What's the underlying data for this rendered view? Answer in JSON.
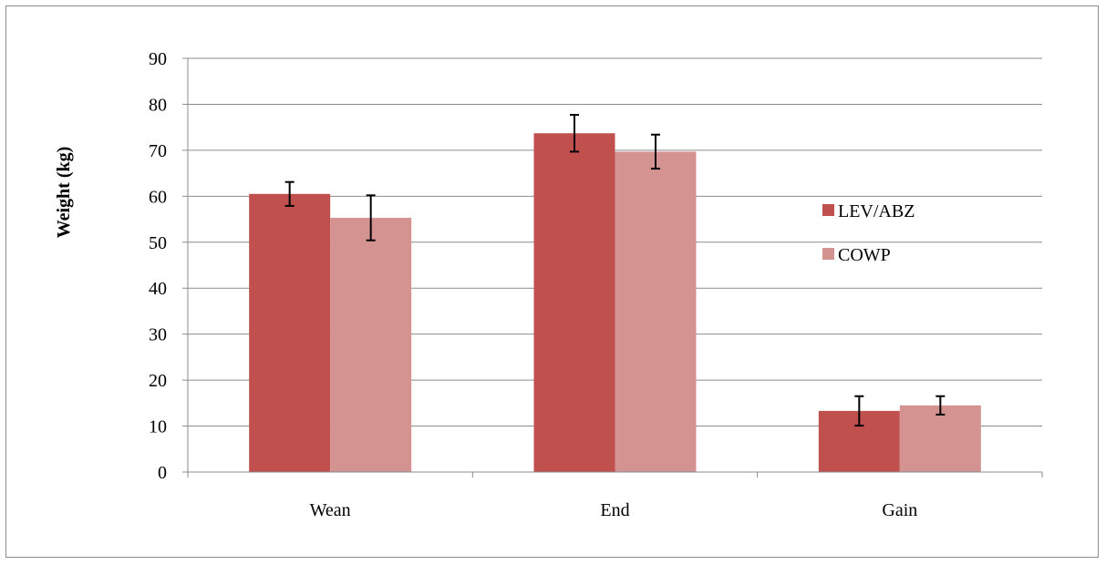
{
  "chart_data": {
    "type": "bar",
    "title": "",
    "xlabel": "",
    "ylabel": "Weight (kg)",
    "categories": [
      "Wean",
      "End",
      "Gain"
    ],
    "series": [
      {
        "name": "LEV/ABZ",
        "color": "#c0504d",
        "values": [
          60.5,
          73.7,
          13.3
        ],
        "errors": [
          2.6,
          4.0,
          3.2
        ]
      },
      {
        "name": "COWP",
        "color": "#d49391",
        "values": [
          55.3,
          69.7,
          14.5
        ],
        "errors": [
          4.9,
          3.7,
          2.0
        ]
      }
    ],
    "ylim": [
      0,
      90
    ],
    "yticks": [
      0,
      10,
      20,
      30,
      40,
      50,
      60,
      70,
      80,
      90
    ],
    "grid": true,
    "legend_position": "right"
  }
}
